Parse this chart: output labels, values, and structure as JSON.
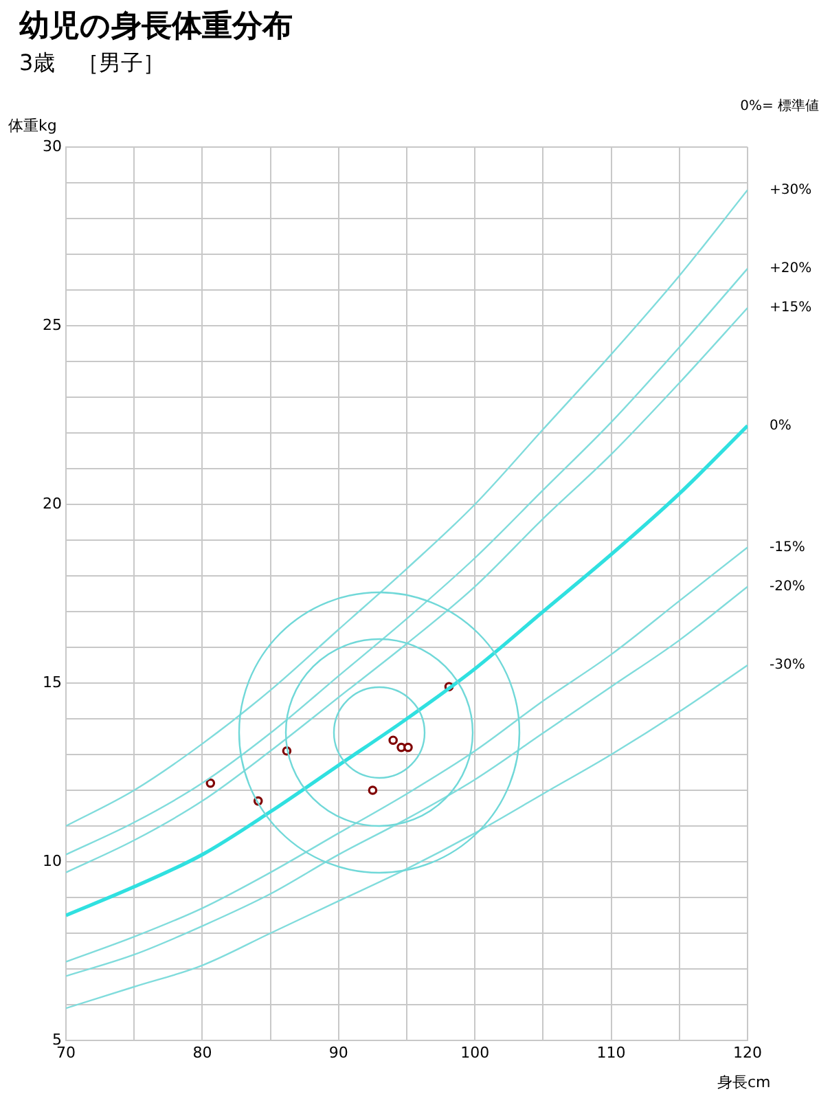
{
  "chart_data": {
    "type": "line",
    "title": "幼児の身長体重分布",
    "subtitle": "3歳　［男子］",
    "xlabel": "身長cm",
    "ylabel": "体重kg",
    "annotations": [
      "0%= 標準値"
    ],
    "x": [
      70,
      75,
      80,
      85,
      90,
      95,
      100,
      105,
      110,
      115,
      120
    ],
    "xlim": [
      70,
      120
    ],
    "ylim": [
      5,
      30
    ],
    "xticks": [
      70,
      {
        "value": 75,
        "label": null
      },
      80,
      {
        "value": 85,
        "label": null
      },
      90,
      {
        "value": 95,
        "label": null
      },
      100,
      {
        "value": 105,
        "label": null
      },
      110,
      {
        "value": 115,
        "label": null
      },
      120
    ],
    "yticks": [
      5,
      {
        "value": 6,
        "label": null
      },
      {
        "value": 7,
        "label": null
      },
      {
        "value": 8,
        "label": null
      },
      {
        "value": 9,
        "label": null
      },
      10,
      {
        "value": 11,
        "label": null
      },
      {
        "value": 12,
        "label": null
      },
      {
        "value": 13,
        "label": null
      },
      {
        "value": 14,
        "label": null
      },
      15,
      {
        "value": 16,
        "label": null
      },
      {
        "value": 17,
        "label": null
      },
      {
        "value": 18,
        "label": null
      },
      {
        "value": 19,
        "label": null
      },
      20,
      {
        "value": 21,
        "label": null
      },
      {
        "value": 22,
        "label": null
      },
      {
        "value": 23,
        "label": null
      },
      {
        "value": 24,
        "label": null
      },
      25,
      {
        "value": 26,
        "label": null
      },
      {
        "value": 27,
        "label": null
      },
      {
        "value": 28,
        "label": null
      },
      {
        "value": 29,
        "label": null
      },
      30
    ],
    "grid": true,
    "legend": false,
    "marker": "none",
    "line_style": "solid",
    "series": [
      {
        "name": "+30%",
        "color": "#80dcdc",
        "values": [
          11.0,
          12.0,
          13.3,
          14.8,
          16.5,
          18.2,
          20.0,
          22.1,
          24.2,
          26.4,
          28.8
        ]
      },
      {
        "name": "+20%",
        "color": "#80dcdc",
        "values": [
          10.2,
          11.1,
          12.2,
          13.6,
          15.2,
          16.8,
          18.5,
          20.4,
          22.3,
          24.4,
          26.6
        ]
      },
      {
        "name": "+15%",
        "color": "#80dcdc",
        "values": [
          9.7,
          10.6,
          11.7,
          13.1,
          14.6,
          16.1,
          17.7,
          19.6,
          21.4,
          23.4,
          25.5
        ]
      },
      {
        "name": "0%",
        "color": "#30e0e0",
        "values": [
          8.5,
          9.3,
          10.2,
          11.4,
          12.7,
          14.0,
          15.4,
          17.0,
          18.6,
          20.3,
          22.2
        ]
      },
      {
        "name": "-15%",
        "color": "#80dcdc",
        "values": [
          7.2,
          7.9,
          8.7,
          9.7,
          10.8,
          11.9,
          13.1,
          14.5,
          15.8,
          17.3,
          18.8
        ]
      },
      {
        "name": "-20%",
        "color": "#80dcdc",
        "values": [
          6.8,
          7.4,
          8.2,
          9.1,
          10.2,
          11.2,
          12.3,
          13.6,
          14.9,
          16.2,
          17.7
        ]
      },
      {
        "name": "-30%",
        "color": "#80dcdc",
        "values": [
          5.9,
          6.5,
          7.1,
          8.0,
          8.9,
          9.8,
          10.8,
          11.9,
          13.0,
          14.2,
          15.5
        ]
      },
      {
        "type": "scatter",
        "marker": "circle",
        "color": "#800000",
        "x": [
          80.6,
          84.1,
          86.2,
          92.5,
          94.0,
          94.6,
          95.1,
          98.1
        ],
        "values": [
          12.2,
          11.7,
          13.1,
          12.0,
          13.4,
          13.2,
          13.2,
          14.9
        ]
      }
    ]
  }
}
